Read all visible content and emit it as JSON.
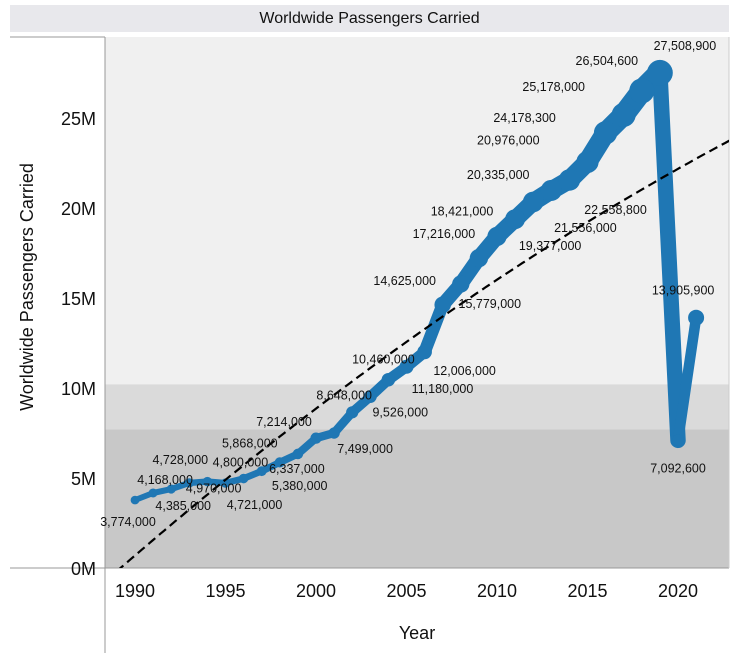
{
  "chart_data": {
    "type": "line",
    "title": "Worldwide Passengers Carried",
    "xlabel": "Year",
    "ylabel": "Worldwide Passengers Carried",
    "x": [
      1990,
      1991,
      1992,
      1993,
      1994,
      1995,
      1996,
      1997,
      1998,
      1999,
      2000,
      2001,
      2002,
      2003,
      2004,
      2005,
      2006,
      2007,
      2008,
      2009,
      2010,
      2011,
      2012,
      2013,
      2014,
      2015,
      2016,
      2017,
      2018,
      2019,
      2020,
      2021
    ],
    "values": [
      3774000,
      4168000,
      4385000,
      4728000,
      4800000,
      4721000,
      4970000,
      5380000,
      5868000,
      6337000,
      7214000,
      7499000,
      8648000,
      9526000,
      10460000,
      11180000,
      12006000,
      14625000,
      15779000,
      17216000,
      18421000,
      19377000,
      20335000,
      20976000,
      21556000,
      22558800,
      24178300,
      25178000,
      26504600,
      27508900,
      7092600,
      13905900
    ],
    "data_labels": [
      "3,774,000",
      "4,168,000",
      "4,385,000",
      "4,728,000",
      "4,800,000",
      "4,721,000",
      "4,970,000",
      "5,380,000",
      "5,868,000",
      "6,337,000",
      "7,214,000",
      "7,499,000",
      "8,648,000",
      "9,526,000",
      "10,460,000",
      "11,180,000",
      "12,006,000",
      "14,625,000",
      "15,779,000",
      "17,216,000",
      "18,421,000",
      "19,377,000",
      "20,335,000",
      "20,976,000",
      "21,556,000",
      "22,558,800",
      "24,178,300",
      "25,178,000",
      "26,504,600",
      "27,508,900",
      "7,092,600",
      "13,905,900"
    ],
    "x_ticks": [
      "1990",
      "1995",
      "2000",
      "2005",
      "2010",
      "2015",
      "2020"
    ],
    "y_ticks": [
      "0M",
      "5M",
      "10M",
      "15M",
      "20M",
      "25M"
    ],
    "xlim": [
      1988.4,
      2023
    ],
    "ylim": [
      0,
      29500000
    ],
    "trend_line": {
      "style": "dashed",
      "color": "#000000",
      "type": "polynomial"
    },
    "reference_bands": [
      {
        "from": 0,
        "to": 7700000,
        "color": "#c8c8c8"
      },
      {
        "from": 7700000,
        "to": 10200000,
        "color": "#dadada"
      }
    ],
    "series_color": "#1f77b4",
    "background": "#f0f0f0",
    "size_encodes_value": true,
    "grid": false
  }
}
